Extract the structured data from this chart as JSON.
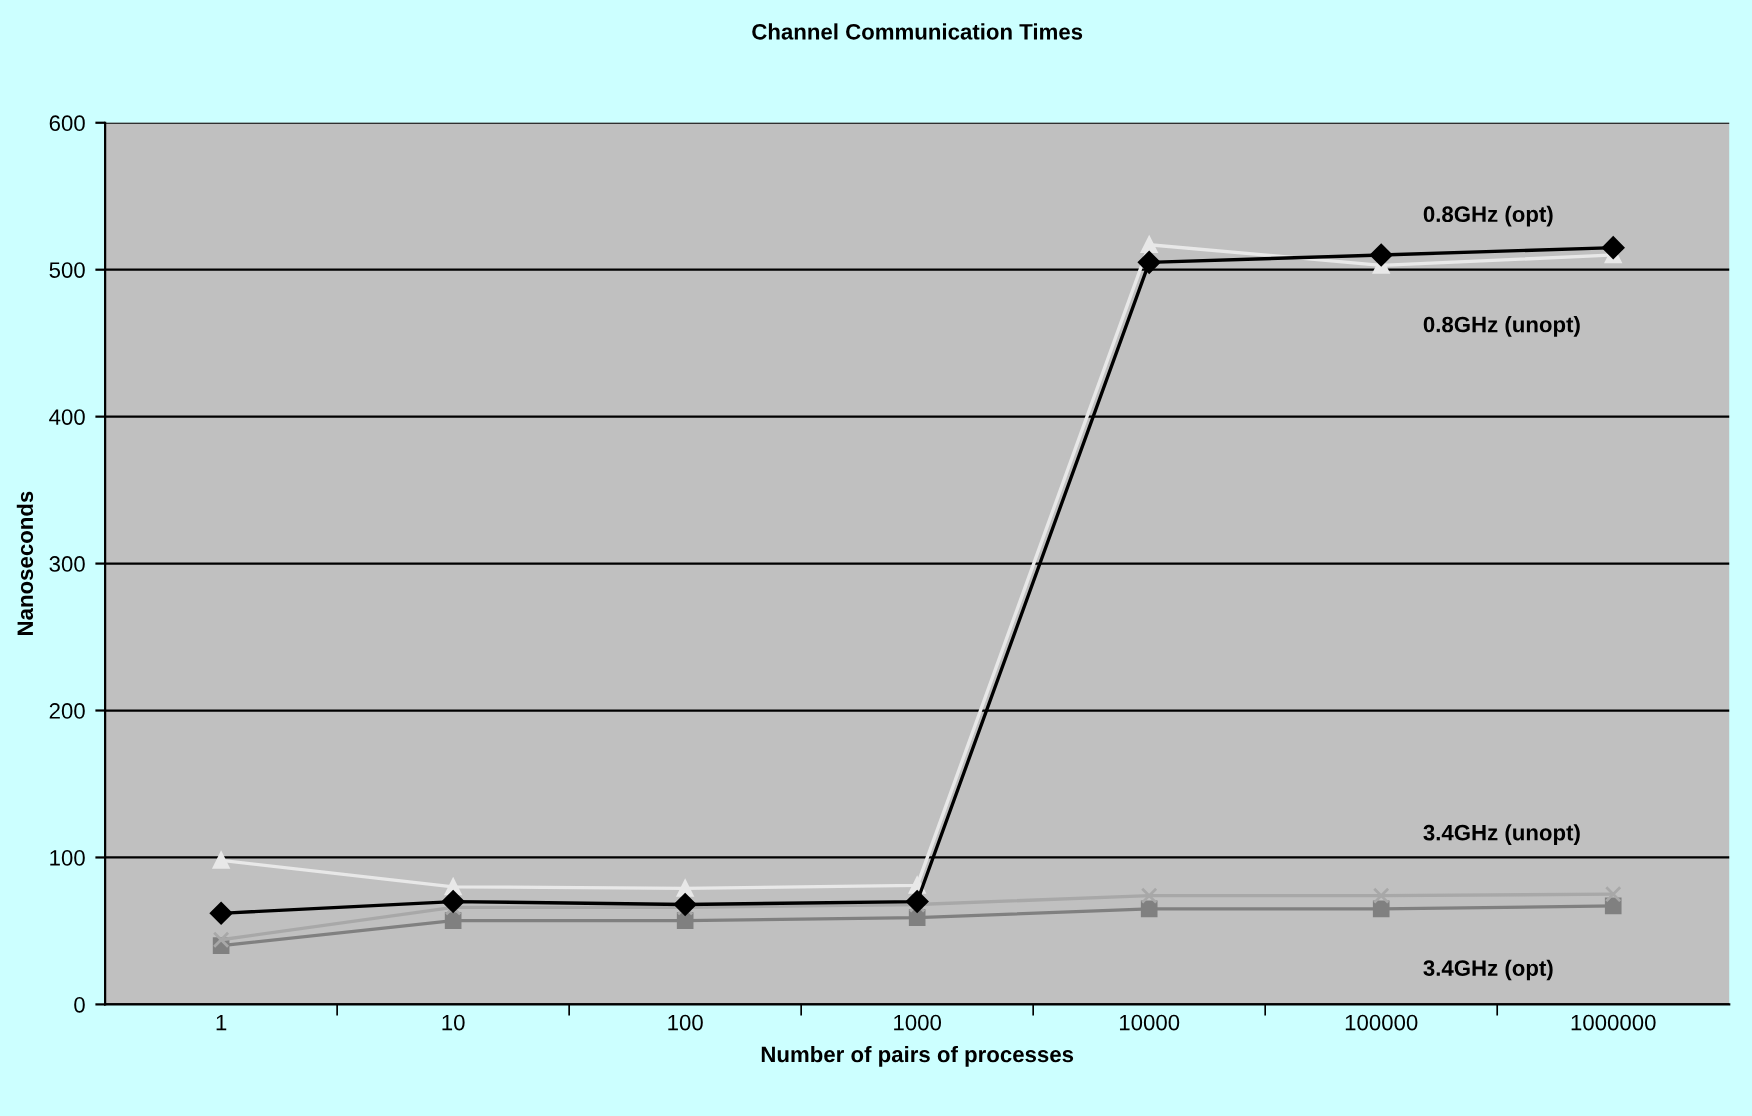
{
  "chart_data": {
    "type": "line",
    "title": "Channel Communication Times",
    "xlabel": "Number of pairs of processes",
    "ylabel": "Nanoseconds",
    "categories": [
      "1",
      "10",
      "100",
      "1000",
      "10000",
      "100000",
      "1000000"
    ],
    "ylim": [
      0,
      600
    ],
    "yticks": [
      0,
      100,
      200,
      300,
      400,
      500,
      600
    ],
    "grid": "y",
    "legend": false,
    "series": [
      {
        "name": "0.8GHz (opt)",
        "color": "#000000",
        "marker": "diamond",
        "values": [
          62,
          70,
          68,
          70,
          505,
          510,
          515
        ]
      },
      {
        "name": "0.8GHz (unopt)",
        "color": "#e8e8e8",
        "marker": "triangle",
        "values": [
          98,
          80,
          79,
          81,
          517,
          503,
          510
        ]
      },
      {
        "name": "3.4GHz (unopt)",
        "color": "#a8a8a8",
        "marker": "cross",
        "values": [
          44,
          66,
          66,
          68,
          74,
          74,
          75
        ]
      },
      {
        "name": "3.4GHz (opt)",
        "color": "#808080",
        "marker": "square",
        "values": [
          40,
          57,
          57,
          59,
          65,
          65,
          67
        ]
      }
    ]
  }
}
